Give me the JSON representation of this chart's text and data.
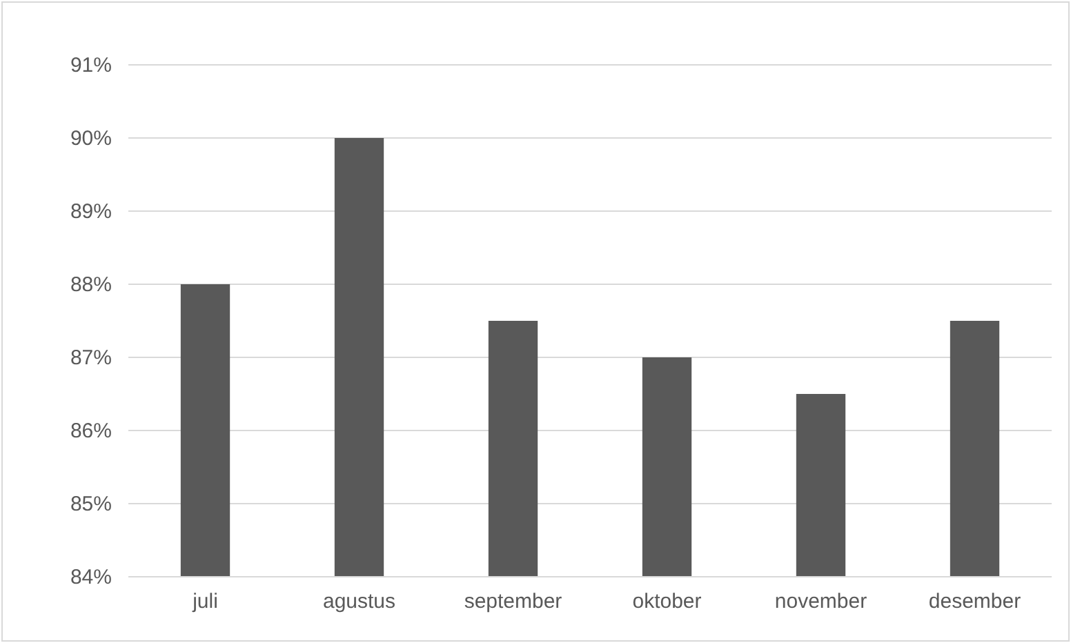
{
  "chart_data": {
    "type": "bar",
    "categories": [
      "juli",
      "agustus",
      "september",
      "oktober",
      "november",
      "desember"
    ],
    "values": [
      88,
      90,
      87.5,
      87,
      86.5,
      87.5
    ],
    "color": "#595959",
    "ylim": [
      84,
      91
    ],
    "yticks": [
      {
        "value": 84,
        "label": "84%"
      },
      {
        "value": 85,
        "label": "85%"
      },
      {
        "value": 86,
        "label": "86%"
      },
      {
        "value": 87,
        "label": "87%"
      },
      {
        "value": 88,
        "label": "88%"
      },
      {
        "value": 89,
        "label": "89%"
      },
      {
        "value": 90,
        "label": "90%"
      },
      {
        "value": 91,
        "label": "91%"
      }
    ],
    "grid": "y"
  }
}
